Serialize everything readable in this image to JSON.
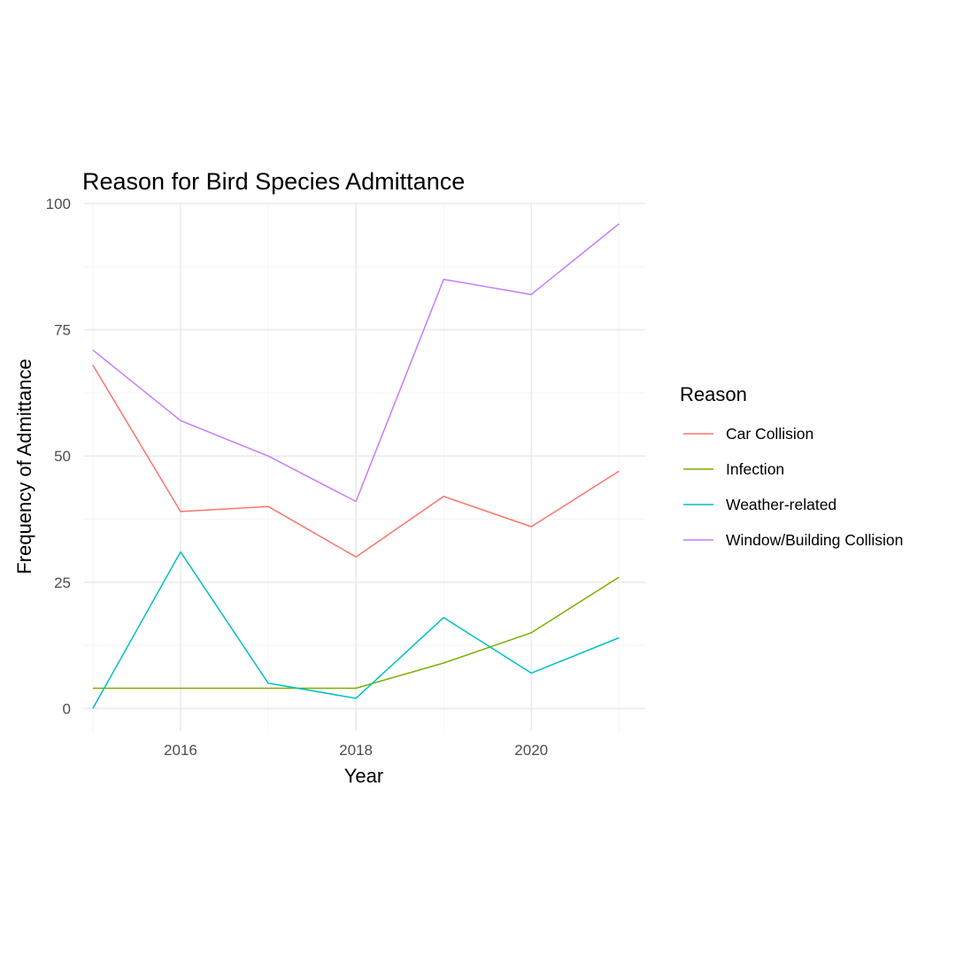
{
  "chart_data": {
    "type": "line",
    "title": "Reason for Bird Species Admittance",
    "xlabel": "Year",
    "ylabel": "Frequency of Admittance",
    "x": [
      2015,
      2016,
      2017,
      2018,
      2019,
      2020,
      2021
    ],
    "xlim": [
      2014.9,
      2021.3
    ],
    "ylim": [
      -4.5,
      100
    ],
    "x_ticks": [
      2016,
      2018,
      2020
    ],
    "y_ticks": [
      0,
      25,
      50,
      75,
      100
    ],
    "grid": true,
    "legend_position": "right",
    "legend_title": "Reason",
    "series": [
      {
        "name": "Car Collision",
        "color": "#F8766D",
        "values": [
          68,
          39,
          40,
          30,
          42,
          36,
          47
        ]
      },
      {
        "name": "Infection",
        "color": "#7CAE00",
        "values": [
          4,
          4,
          4,
          4,
          9,
          15,
          26
        ]
      },
      {
        "name": "Weather-related",
        "color": "#00BFC4",
        "values": [
          0,
          31,
          5,
          2,
          18,
          7,
          14
        ]
      },
      {
        "name": "Window/Building Collision",
        "color": "#C77CFF",
        "values": [
          71,
          57,
          50,
          41,
          85,
          82,
          96
        ]
      }
    ]
  }
}
